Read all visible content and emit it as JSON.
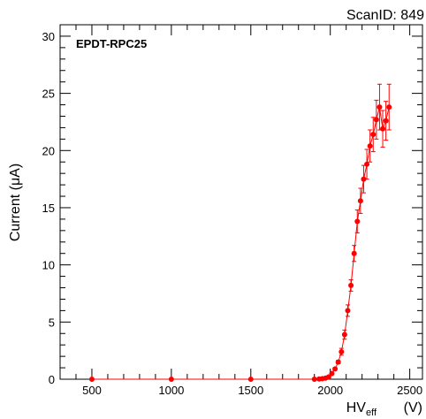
{
  "chart_data": {
    "type": "scatter",
    "header": "ScanID: 849",
    "title": "EPDT-RPC25",
    "xlabel": "HV",
    "xlabel_sub": "eff",
    "xlabel_unit": "(V)",
    "ylabel": "Current (μA)",
    "xlim": [
      300,
      2580
    ],
    "ylim": [
      0,
      31
    ],
    "x_ticks": [
      500,
      1000,
      1500,
      2000,
      2500
    ],
    "y_ticks": [
      0,
      5,
      10,
      15,
      20,
      25,
      30
    ],
    "series_color": "#ff0000",
    "series": [
      {
        "x": [
          500,
          1000,
          1500,
          1900,
          1930,
          1950,
          1970,
          1990,
          2010,
          2030,
          2050,
          2070,
          2090,
          2110,
          2130,
          2150,
          2170,
          2190,
          2210,
          2230,
          2250,
          2270,
          2290,
          2310,
          2330,
          2350,
          2370
        ],
        "y": [
          0,
          0,
          0,
          0,
          0.02,
          0.05,
          0.1,
          0.2,
          0.5,
          0.9,
          1.5,
          2.4,
          3.9,
          6.0,
          8.2,
          11.0,
          13.8,
          15.6,
          17.5,
          18.8,
          20.4,
          21.4,
          22.7,
          23.8,
          21.9,
          22.6,
          23.8
        ],
        "err": [
          0,
          0,
          0,
          0,
          0,
          0,
          0,
          0.05,
          0.1,
          0.1,
          0.15,
          0.3,
          0.4,
          0.5,
          0.5,
          0.7,
          1.0,
          1.1,
          1.2,
          1.3,
          1.4,
          1.5,
          1.7,
          2.0,
          1.6,
          1.7,
          2.0
        ]
      }
    ]
  }
}
